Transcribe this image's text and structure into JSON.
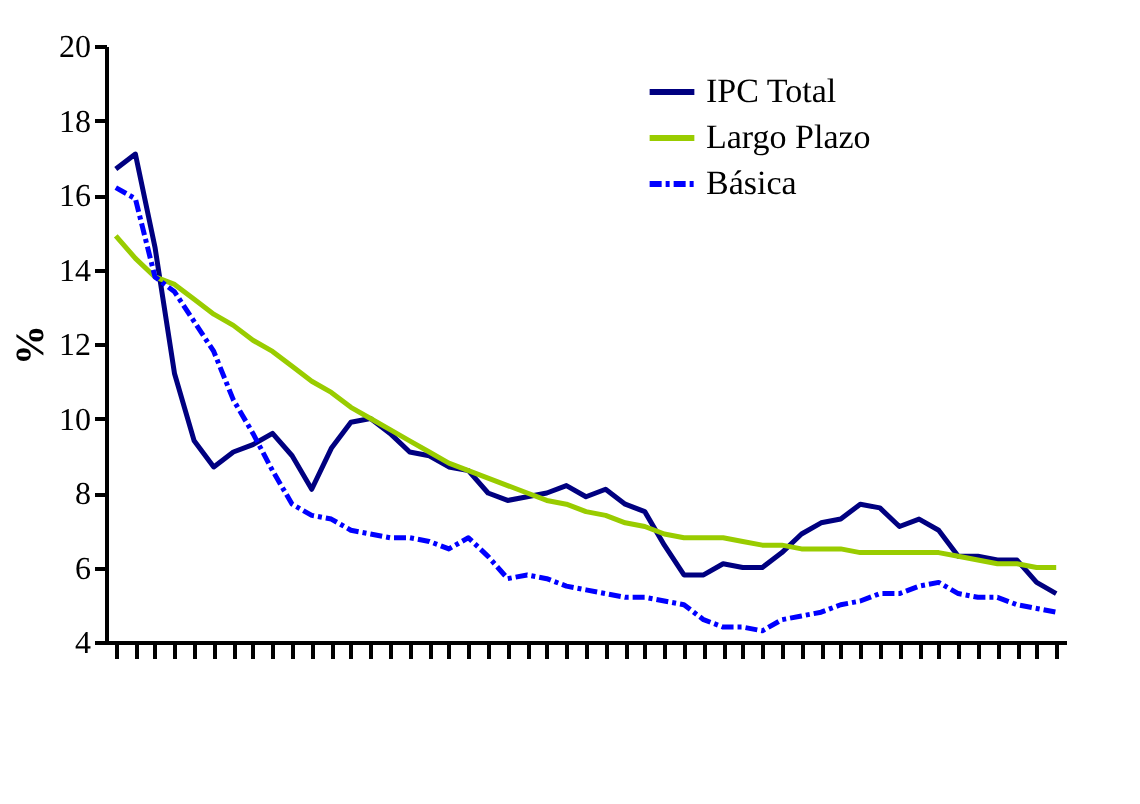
{
  "chart_data": {
    "type": "line",
    "ylabel": "%",
    "categories": [
      null,
      null,
      null,
      null,
      null,
      null,
      null,
      null,
      null,
      null,
      null,
      null,
      null,
      null,
      null,
      null,
      null,
      null,
      null,
      null,
      null,
      null,
      null,
      null,
      null,
      null,
      null,
      null,
      null,
      null,
      null,
      null,
      null,
      null,
      null,
      null,
      null,
      null,
      null,
      null,
      null,
      null,
      null,
      null,
      null,
      null,
      null,
      null,
      null
    ],
    "series": [
      {
        "name": "IPC Total",
        "color": "#000080",
        "line_style": "solid",
        "values": [
          16.7,
          17.1,
          14.6,
          11.2,
          9.4,
          8.7,
          9.1,
          9.3,
          9.6,
          9.0,
          8.1,
          9.2,
          9.9,
          10.0,
          9.6,
          9.1,
          9.0,
          8.7,
          8.6,
          8.0,
          7.8,
          7.9,
          8.0,
          8.2,
          7.9,
          8.1,
          7.7,
          7.5,
          6.6,
          5.8,
          5.8,
          6.1,
          6.0,
          6.0,
          6.4,
          6.9,
          7.2,
          7.3,
          7.7,
          7.6,
          7.1,
          7.3,
          7.0,
          6.3,
          6.3,
          6.2,
          6.2,
          5.6,
          5.3
        ]
      },
      {
        "name": "Largo Plazo",
        "color": "#99cc00",
        "line_style": "solid",
        "values": [
          14.9,
          14.3,
          13.8,
          13.6,
          13.2,
          12.8,
          12.5,
          12.1,
          11.8,
          11.4,
          11.0,
          10.7,
          10.3,
          10.0,
          9.7,
          9.4,
          9.1,
          8.8,
          8.6,
          8.4,
          8.2,
          8.0,
          7.8,
          7.7,
          7.5,
          7.4,
          7.2,
          7.1,
          6.9,
          6.8,
          6.8,
          6.8,
          6.7,
          6.6,
          6.6,
          6.5,
          6.5,
          6.5,
          6.4,
          6.4,
          6.4,
          6.4,
          6.4,
          6.3,
          6.2,
          6.1,
          6.1,
          6.0,
          6.0
        ]
      },
      {
        "name": "Básica",
        "color": "#0000ff",
        "line_style": "dashed",
        "values": [
          16.2,
          15.9,
          13.8,
          13.4,
          12.6,
          11.8,
          10.5,
          9.6,
          8.6,
          7.7,
          7.4,
          7.3,
          7.0,
          6.9,
          6.8,
          6.8,
          6.7,
          6.5,
          6.8,
          6.3,
          5.7,
          5.8,
          5.7,
          5.5,
          5.4,
          5.3,
          5.2,
          5.2,
          5.1,
          5.0,
          4.6,
          4.4,
          4.4,
          4.3,
          4.6,
          4.7,
          4.8,
          5.0,
          5.1,
          5.3,
          5.3,
          5.5,
          5.6,
          5.3,
          5.2,
          5.2,
          5.0,
          4.9,
          4.8
        ]
      }
    ],
    "ylim": [
      4,
      20
    ],
    "yticks": [
      4,
      6,
      8,
      10,
      12,
      14,
      16,
      18,
      20
    ],
    "grid": false,
    "legend": "top right",
    "marker": "none",
    "tick_labels": "y"
  }
}
